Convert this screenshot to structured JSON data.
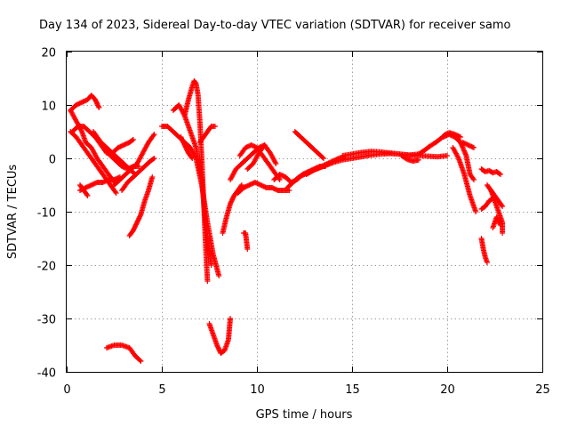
{
  "chart_data": {
    "type": "scatter",
    "title": "Day 134 of 2023, Sidereal Day-to-day VTEC variation (SDTVAR) for receiver samo",
    "xlabel": "GPS time / hours",
    "ylabel": "SDTVAR / TECUs",
    "xlim": [
      0,
      25
    ],
    "ylim": [
      -40,
      20
    ],
    "xticks": [
      "0",
      "5",
      "10",
      "15",
      "20",
      "25"
    ],
    "yticks": [
      "20",
      "10",
      "0",
      "-10",
      "-20",
      "-30",
      "-40"
    ],
    "grid": true,
    "marker": "+",
    "color": "#ff0000",
    "tracks": [
      {
        "name": "track-1",
        "x": [
          0.2,
          0.5,
          0.8,
          1.1,
          1.3,
          1.5,
          1.7
        ],
        "y": [
          9,
          10,
          10.5,
          11,
          11.8,
          11,
          9.5
        ]
      },
      {
        "name": "track-2",
        "x": [
          0.2,
          0.5,
          0.8,
          1.1,
          1.4,
          1.7,
          2.0,
          2.3,
          2.6
        ],
        "y": [
          5,
          4,
          2.5,
          1,
          -0.5,
          -2,
          -3.5,
          -5,
          -6.5
        ]
      },
      {
        "name": "track-3",
        "x": [
          0.2,
          0.5,
          0.8,
          1.0,
          1.3,
          1.6,
          1.9,
          2.2,
          2.5
        ],
        "y": [
          9,
          7,
          5,
          3,
          2,
          0,
          -1.5,
          -3,
          -4.5
        ]
      },
      {
        "name": "track-4",
        "x": [
          0.3,
          0.6,
          0.9,
          1.2,
          1.5,
          1.8,
          2.1,
          2.4,
          2.7,
          3.0,
          3.3,
          3.6
        ],
        "y": [
          5,
          6,
          6,
          5,
          4,
          3,
          2,
          1,
          0,
          -1,
          -2,
          -3
        ]
      },
      {
        "name": "track-5",
        "x": [
          0.7,
          1.0,
          1.3,
          1.6,
          1.9,
          2.2,
          2.5,
          2.8
        ],
        "y": [
          -6,
          -5.5,
          -5,
          -4.5,
          -4.5,
          -4,
          -4,
          -3.5
        ]
      },
      {
        "name": "track-6",
        "x": [
          0.7,
          0.9,
          1.1
        ],
        "y": [
          -5,
          -6,
          -7
        ]
      },
      {
        "name": "track-7",
        "x": [
          1.4,
          1.7,
          2.0,
          2.3,
          2.6,
          2.9,
          3.2,
          3.5,
          3.8
        ],
        "y": [
          5,
          3.5,
          2,
          0.5,
          -0.5,
          -1.5,
          -2,
          -1.5,
          -1.5
        ]
      },
      {
        "name": "track-8",
        "x": [
          1.5,
          1.8,
          2.1,
          2.4,
          2.7,
          3.0,
          3.3,
          3.5
        ],
        "y": [
          4,
          2.5,
          1,
          1,
          2,
          2.5,
          3,
          3.5
        ]
      },
      {
        "name": "track-9",
        "x": [
          2.5,
          2.8,
          3.1,
          3.4,
          3.7,
          4.0,
          4.3,
          4.6
        ],
        "y": [
          -5,
          -4,
          -3,
          -2,
          -1,
          1,
          3,
          4.5
        ]
      },
      {
        "name": "track-10",
        "x": [
          2.9,
          3.2,
          3.5,
          3.8,
          4.1,
          4.4,
          4.6
        ],
        "y": [
          -6,
          -4.5,
          -3.5,
          -2.5,
          -1.5,
          -0.5,
          0
        ]
      },
      {
        "name": "track-11",
        "x": [
          3.3,
          3.5,
          3.7,
          3.9,
          4.1,
          4.3,
          4.5
        ],
        "y": [
          -14.5,
          -13.5,
          -12,
          -10.5,
          -8,
          -6,
          -3.5
        ]
      },
      {
        "name": "track-12",
        "x": [
          2.1,
          2.5,
          2.9,
          3.3,
          3.6,
          3.9
        ],
        "y": [
          -35.5,
          -35,
          -35,
          -35.5,
          -37,
          -38
        ]
      },
      {
        "name": "track-13",
        "x": [
          5.0,
          5.3,
          5.6,
          5.9,
          6.2,
          6.5,
          6.8,
          7.1,
          7.4,
          7.7,
          8.0
        ],
        "y": [
          6,
          6,
          5,
          4,
          3,
          2,
          0,
          -5,
          -12,
          -18,
          -22
        ]
      },
      {
        "name": "track-14",
        "x": [
          5.6,
          5.9,
          6.2,
          6.5,
          6.8,
          7.1,
          7.3,
          7.6
        ],
        "y": [
          9,
          10,
          8,
          5,
          2,
          -4,
          -12,
          -20
        ]
      },
      {
        "name": "track-15",
        "x": [
          6.2,
          6.4,
          6.6,
          6.7,
          6.8,
          6.9,
          7.0,
          7.1,
          7.2,
          7.3,
          7.4
        ],
        "y": [
          8,
          11,
          13.5,
          14.5,
          14,
          12,
          7,
          0,
          -8,
          -16,
          -23
        ]
      },
      {
        "name": "track-16",
        "x": [
          6.0,
          6.2,
          6.4,
          6.6
        ],
        "y": [
          4,
          2.5,
          1,
          0
        ]
      },
      {
        "name": "track-17",
        "x": [
          7.0,
          7.2,
          7.4,
          7.6,
          7.8
        ],
        "y": [
          3,
          4,
          5,
          6,
          6
        ]
      },
      {
        "name": "track-18",
        "x": [
          7.5,
          7.7,
          7.9,
          8.1,
          8.3,
          8.5,
          8.6
        ],
        "y": [
          -31,
          -33,
          -35,
          -36.5,
          -36,
          -34,
          -30
        ]
      },
      {
        "name": "track-19",
        "x": [
          8.2,
          8.4,
          8.6,
          8.8,
          9.0,
          9.2
        ],
        "y": [
          -14,
          -11,
          -8.5,
          -7,
          -6,
          -5
        ]
      },
      {
        "name": "track-20",
        "x": [
          8.6,
          8.9,
          9.2,
          9.5,
          9.8,
          10.1,
          10.4
        ],
        "y": [
          -4,
          -2,
          -1,
          0,
          1,
          2,
          2.5
        ]
      },
      {
        "name": "track-21",
        "x": [
          9.0,
          9.3,
          9.6,
          9.9,
          10.2,
          10.5,
          10.8,
          11.1,
          11.4,
          11.7
        ],
        "y": [
          -6.5,
          -5.5,
          -5,
          -4.5,
          -5,
          -5.5,
          -5.5,
          -6,
          -6,
          -6
        ]
      },
      {
        "name": "track-22",
        "x": [
          9.1,
          9.4,
          9.7,
          10.0,
          10.3,
          10.6,
          10.9,
          11.2
        ],
        "y": [
          0.5,
          2,
          2.5,
          2,
          0.5,
          -1,
          -2.5,
          -4
        ]
      },
      {
        "name": "track-23",
        "x": [
          9.5,
          9.8,
          10.1,
          10.4,
          10.7,
          11.0
        ],
        "y": [
          -2,
          -1,
          1,
          2.5,
          1,
          -1
        ]
      },
      {
        "name": "track-24",
        "x": [
          9.3,
          9.4,
          9.5
        ],
        "y": [
          -14,
          -14,
          -17
        ]
      },
      {
        "name": "track-25",
        "x": [
          10.9,
          11.2,
          11.5,
          11.8,
          12.1,
          12.4,
          12.7,
          13.0,
          13.3,
          13.6
        ],
        "y": [
          -4,
          -3,
          -3.5,
          -4.5,
          -4,
          -3,
          -2.5,
          -2,
          -1.5,
          -1.5
        ]
      },
      {
        "name": "track-26",
        "x": [
          11.6,
          11.9,
          12.2,
          12.5,
          12.8,
          13.1,
          13.4,
          13.7,
          14.0,
          14.3,
          14.6
        ],
        "y": [
          -5.5,
          -4.5,
          -3.5,
          -3,
          -2.5,
          -2,
          -1.5,
          -1,
          -0.5,
          0,
          0.2
        ]
      },
      {
        "name": "track-27",
        "x": [
          12.0,
          12.3,
          12.6,
          12.9,
          13.2,
          13.5
        ],
        "y": [
          5,
          4,
          3,
          2,
          1,
          0
        ]
      },
      {
        "name": "track-28",
        "x": [
          12.6,
          13.0,
          13.5,
          14.0,
          14.5,
          15.0,
          15.5,
          16.0,
          16.5,
          17.0,
          17.5,
          18.0,
          18.5,
          19.0,
          19.5,
          20.0
        ],
        "y": [
          -3,
          -2.2,
          -1.5,
          -0.8,
          -0.3,
          0,
          0.3,
          0.6,
          0.8,
          0.9,
          0.8,
          0.6,
          0.5,
          0.4,
          0.3,
          0.5
        ]
      },
      {
        "name": "track-29",
        "x": [
          14.5,
          15.0,
          15.5,
          16.0,
          16.5,
          17.0,
          17.5,
          18.0,
          18.5
        ],
        "y": [
          0.5,
          0.8,
          1.1,
          1.3,
          1.2,
          1,
          0.8,
          0.6,
          0.8
        ]
      },
      {
        "name": "track-30",
        "x": [
          17.6,
          17.9,
          18.2,
          18.5
        ],
        "y": [
          0.5,
          -0.2,
          -0.5,
          -0.3
        ]
      },
      {
        "name": "track-31",
        "x": [
          18.5,
          18.8,
          19.1,
          19.4,
          19.7,
          19.9,
          20.1,
          20.4,
          20.7
        ],
        "y": [
          0.8,
          1.5,
          2.3,
          3,
          3.8,
          4.5,
          4.8,
          4.5,
          4
        ]
      },
      {
        "name": "track-32",
        "x": [
          19.8,
          20.1,
          20.4,
          20.7,
          21.0,
          21.2,
          21.4
        ],
        "y": [
          4,
          4.5,
          4,
          3,
          0.5,
          -3,
          -4
        ]
      },
      {
        "name": "track-33",
        "x": [
          20.3,
          20.6,
          20.9,
          21.2,
          21.4,
          21.5
        ],
        "y": [
          2,
          0,
          -3,
          -7,
          -9,
          -10
        ]
      },
      {
        "name": "track-34",
        "x": [
          20.8,
          21.1,
          21.4
        ],
        "y": [
          3,
          2.5,
          2
        ]
      },
      {
        "name": "track-35",
        "x": [
          21.8,
          22.0,
          22.2,
          22.4,
          22.6,
          22.8
        ],
        "y": [
          -2,
          -2.5,
          -2.3,
          -2.7,
          -2.5,
          -3
        ]
      },
      {
        "name": "track-36",
        "x": [
          22.1,
          22.3,
          22.5,
          22.7,
          22.9
        ],
        "y": [
          -5,
          -6,
          -7,
          -8,
          -9
        ]
      },
      {
        "name": "track-37",
        "x": [
          22.3,
          22.5,
          22.7,
          22.9,
          22.9
        ],
        "y": [
          -6,
          -8,
          -10,
          -12,
          -14
        ]
      },
      {
        "name": "track-38",
        "x": [
          21.8,
          22.0,
          22.2,
          22.4
        ],
        "y": [
          -9.5,
          -9,
          -8,
          -7.5
        ]
      },
      {
        "name": "track-39",
        "x": [
          22.4,
          22.6,
          22.8
        ],
        "y": [
          -13,
          -11,
          -12.5
        ]
      },
      {
        "name": "track-40",
        "x": [
          21.8,
          21.9,
          22.0,
          22.1
        ],
        "y": [
          -15,
          -17,
          -18.5,
          -19.5
        ]
      }
    ]
  }
}
